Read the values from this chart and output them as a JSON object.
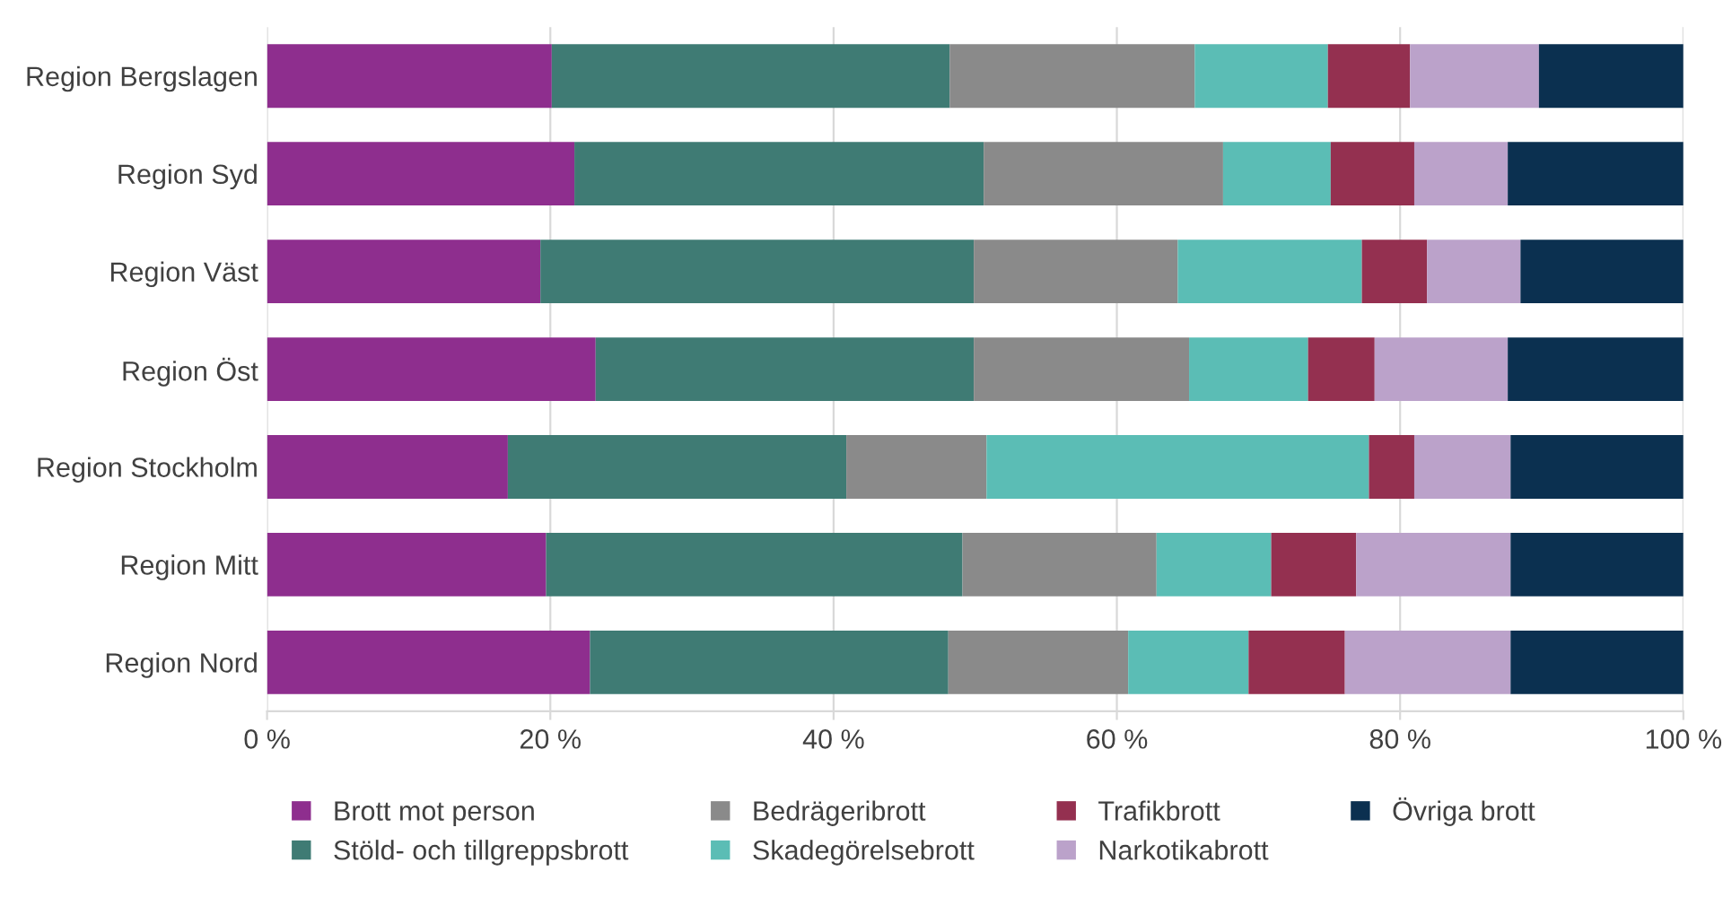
{
  "chart_data": {
    "type": "bar",
    "orientation": "horizontal",
    "stacked": true,
    "categories": [
      "Region Bergslagen",
      "Region Syd",
      "Region Väst",
      "Region Öst",
      "Region Stockholm",
      "Region Mitt",
      "Region Nord"
    ],
    "series": [
      {
        "name": "Brott mot person",
        "color": "#8e2e8e",
        "values": [
          20.1,
          21.7,
          19.3,
          23.2,
          17.0,
          19.7,
          22.8
        ]
      },
      {
        "name": "Stöld- och tillgreppsbrott",
        "color": "#3f7b74",
        "values": [
          28.1,
          28.9,
          30.6,
          26.7,
          23.9,
          29.4,
          25.3
        ]
      },
      {
        "name": "Bedrägeribrott",
        "color": "#8a8a8a",
        "values": [
          17.3,
          16.9,
          14.4,
          15.2,
          9.9,
          13.7,
          12.7
        ]
      },
      {
        "name": "Skadegörelsebrott",
        "color": "#5bbdb5",
        "values": [
          9.4,
          7.6,
          13.0,
          8.4,
          27.0,
          8.1,
          8.5
        ]
      },
      {
        "name": "Trafikbrott",
        "color": "#943050",
        "values": [
          5.8,
          5.9,
          4.6,
          4.7,
          3.2,
          6.0,
          6.8
        ]
      },
      {
        "name": "Narkotikabrott",
        "color": "#bba2ca",
        "values": [
          9.1,
          6.6,
          6.6,
          9.4,
          6.8,
          10.9,
          11.7
        ]
      },
      {
        "name": "Övriga brott",
        "color": "#0b3050",
        "values": [
          10.2,
          12.4,
          11.5,
          12.4,
          12.2,
          12.2,
          12.2
        ]
      }
    ],
    "xlim": [
      0,
      100
    ],
    "xticks": [
      {
        "value": 0,
        "label": "0 %"
      },
      {
        "value": 20,
        "label": "20 %"
      },
      {
        "value": 40,
        "label": "40 %"
      },
      {
        "value": 60,
        "label": "60 %"
      },
      {
        "value": 80,
        "label": "80 %"
      },
      {
        "value": 100,
        "label": "100 %"
      }
    ],
    "grid": "x",
    "legend": "bottom"
  }
}
